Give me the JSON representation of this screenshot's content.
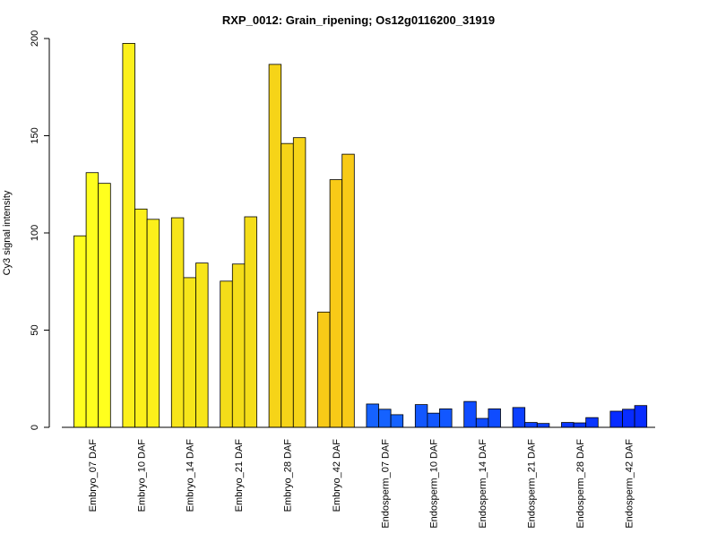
{
  "chart_data": {
    "type": "bar",
    "title": "RXP_0012: Grain_ripening; Os12g0116200_31919",
    "ylabel": "Cy3 signal intensity",
    "xlabel": "",
    "ylim": [
      0,
      200
    ],
    "yticks": [
      0,
      50,
      100,
      150,
      200
    ],
    "grid": false,
    "legend": "none",
    "groups": [
      {
        "label": "Embryo_07 DAF",
        "values": [
          98.5,
          131,
          125.5
        ],
        "color": "#ffff1e"
      },
      {
        "label": "Embryo_10 DAF",
        "values": [
          197.5,
          112.3,
          107
        ],
        "color": "#fcf01b"
      },
      {
        "label": "Embryo_14 DAF",
        "values": [
          107.8,
          77,
          84.5
        ],
        "color": "#f7e51a"
      },
      {
        "label": "Embryo_21 DAF",
        "values": [
          75.2,
          84,
          108.3
        ],
        "color": "#f4dd19"
      },
      {
        "label": "Embryo_28 DAF",
        "values": [
          186.7,
          146,
          149
        ],
        "color": "#f6d418"
      },
      {
        "label": "Embryo_42 DAF",
        "values": [
          59.3,
          127.4,
          140.5
        ],
        "color": "#f8ca17"
      },
      {
        "label": "Endosperm_07 DAF",
        "values": [
          12,
          9.3,
          6.5
        ],
        "color": "#1562ff"
      },
      {
        "label": "Endosperm_10 DAF",
        "values": [
          11.7,
          7.3,
          9.5
        ],
        "color": "#1257ff"
      },
      {
        "label": "Endosperm_14 DAF",
        "values": [
          13.3,
          4.6,
          9.5
        ],
        "color": "#0f4cff"
      },
      {
        "label": "Endosperm_21 DAF",
        "values": [
          10.2,
          2.5,
          2
        ],
        "color": "#0c40ff"
      },
      {
        "label": "Endosperm_28 DAF",
        "values": [
          2.5,
          2.3,
          5
        ],
        "color": "#0a36ff"
      },
      {
        "label": "Endosperm_42 DAF",
        "values": [
          8.3,
          9.3,
          11.2
        ],
        "color": "#082cff"
      }
    ]
  }
}
